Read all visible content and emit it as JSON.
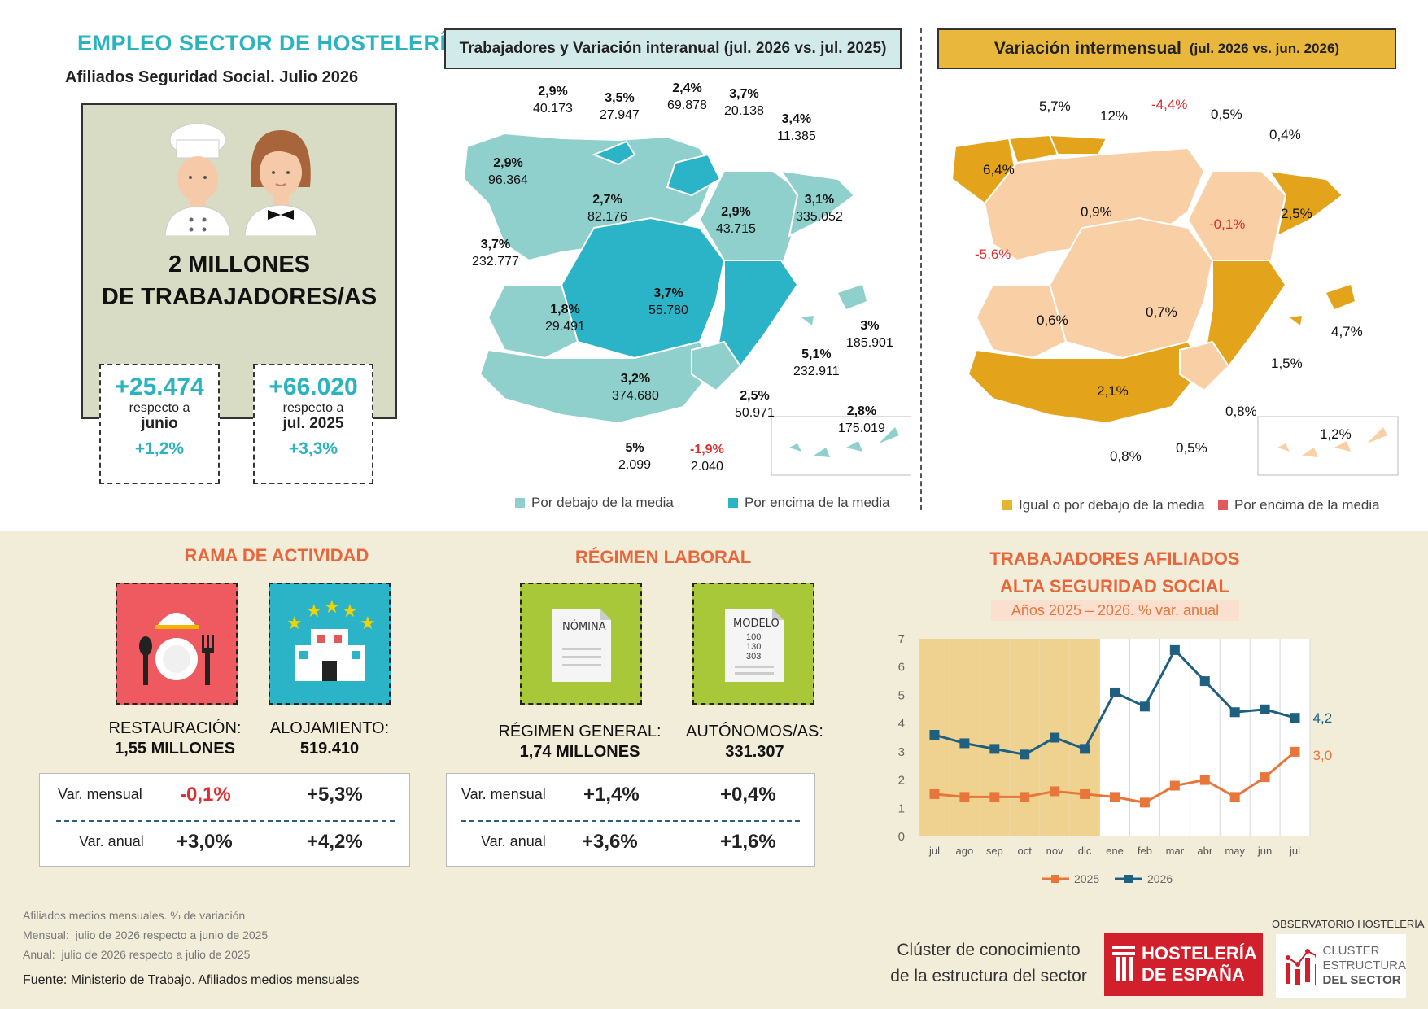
{
  "header": {
    "title": "EMPLEO SECTOR DE HOSTELERÍA",
    "subtitle": "Afiliados Seguridad Social. Julio 2026"
  },
  "hero": {
    "line1": "2 MILLONES",
    "line2": "DE TRABAJADORES/AS",
    "card_junio": {
      "value": "+25.474",
      "label": "respecto a",
      "period": "junio",
      "pct": "+1,2%"
    },
    "card_julio": {
      "value": "+66.020",
      "label": "respecto a",
      "period": "jul. 2025",
      "pct": "+3,3%"
    }
  },
  "map_left": {
    "title": "Trabajadores y Variación interanual (jul. 2026 vs. jul. 2025)",
    "legend_below": "Por debajo de la media",
    "legend_above": "Por encima de la media",
    "color_below": "#8fcfcc",
    "color_above": "#2bb3c7",
    "labels": [
      {
        "pct": "2,9%",
        "val": "40.173"
      },
      {
        "pct": "3,5%",
        "val": "27.947"
      },
      {
        "pct": "2,4%",
        "val": "69.878"
      },
      {
        "pct": "3,7%",
        "val": "20.138"
      },
      {
        "pct": "3,4%",
        "val": "11.385"
      },
      {
        "pct": "2,9%",
        "val": "96.364"
      },
      {
        "pct": "2,7%",
        "val": "82.176"
      },
      {
        "pct": "2,9%",
        "val": "43.715"
      },
      {
        "pct": "3,1%",
        "val": "335.052"
      },
      {
        "pct": "3,7%",
        "val": "232.777"
      },
      {
        "pct": "1,8%",
        "val": "29.491"
      },
      {
        "pct": "3,7%",
        "val": "55.780"
      },
      {
        "pct": "3%",
        "val": "185.901"
      },
      {
        "pct": "5,1%",
        "val": "232.911"
      },
      {
        "pct": "3,2%",
        "val": "374.680"
      },
      {
        "pct": "2,5%",
        "val": "50.971"
      },
      {
        "pct": "2,8%",
        "val": "175.019"
      },
      {
        "pct": "5%",
        "val": "2.099"
      },
      {
        "pct": "-1,9%",
        "val": "2.040"
      }
    ]
  },
  "map_right": {
    "title_main": "Variación intermensual",
    "title_period": "(jul. 2026 vs. jun. 2026)",
    "legend_below": "Igual o por debajo de la media",
    "legend_above": "Por encima de la media",
    "color_below": "#e3a31a",
    "color_above": "#f9cfa6",
    "labels": [
      "5,7%",
      "12%",
      "-4,4%",
      "0,5%",
      "0,4%",
      "6,4%",
      "0,9%",
      "-0,1%",
      "2,5%",
      "-5,6%",
      "0,6%",
      "0,7%",
      "4,7%",
      "1,5%",
      "2,1%",
      "0,8%",
      "1,2%",
      "0,8%",
      "0,5%"
    ]
  },
  "rama": {
    "title": "RAMA DE ACTIVIDAD",
    "restauracion_label": "RESTAURACIÓN:",
    "restauracion_value": "1,55 MILLONES",
    "alojamiento_label": "ALOJAMIENTO:",
    "alojamiento_value": "519.410",
    "row1_label": "Var. mensual",
    "row1_a": "-0,1%",
    "row1_b": "+5,3%",
    "row2_label": "Var. anual",
    "row2_a": "+3,0%",
    "row2_b": "+4,2%"
  },
  "regimen": {
    "title": "RÉGIMEN LABORAL",
    "doc1": "NÓMINA",
    "doc2": "MODELO",
    "doc2_nums": [
      "100",
      "130",
      "303"
    ],
    "general_label": "RÉGIMEN GENERAL:",
    "general_value": "1,74 MILLONES",
    "autonomos_label": "AUTÓNOMOS/AS:",
    "autonomos_value": "331.307",
    "row1_label": "Var. mensual",
    "row1_a": "+1,4%",
    "row1_b": "+0,4%",
    "row2_label": "Var. anual",
    "row2_a": "+3,6%",
    "row2_b": "+1,6%"
  },
  "chart_data": {
    "type": "line",
    "title": "TRABAJADORES AFILIADOS",
    "title2": "ALTA SEGURIDAD SOCIAL",
    "subtitle": "Años 2025 – 2026. % var. anual",
    "categories": [
      "jul",
      "ago",
      "sep",
      "oct",
      "nov",
      "dic",
      "ene",
      "feb",
      "mar",
      "abr",
      "may",
      "jun",
      "jul"
    ],
    "ylim": [
      0,
      7
    ],
    "yticks": [
      0,
      1,
      2,
      3,
      4,
      5,
      6,
      7
    ],
    "grid": "vertical",
    "legend": "bottom",
    "series": [
      {
        "name": "2025",
        "color": "#e8763b",
        "values": [
          1.5,
          1.4,
          1.4,
          1.4,
          1.6,
          1.5,
          1.4,
          1.2,
          1.8,
          2.0,
          1.4,
          2.1,
          3.0
        ]
      },
      {
        "name": "2026",
        "color": "#1f5f80",
        "values": [
          3.6,
          3.3,
          3.1,
          2.9,
          3.5,
          3.1,
          5.1,
          4.6,
          6.6,
          5.5,
          4.4,
          4.5,
          4.2
        ]
      }
    ],
    "end_labels": [
      "4,2",
      "3,0"
    ],
    "shaded_range": [
      0,
      5
    ]
  },
  "footer": {
    "note1": "Afiliados medios mensuales. % de variación",
    "note2_label": "Mensual:",
    "note2": "julio de 2026 respecto a junio de 2025",
    "note3_label": "Anual:",
    "note3": "julio de 2026 respecto a julio de 2025",
    "source": "Fuente: Ministerio de Trabajo. Afiliados medios mensuales",
    "cluster_line1": "Clúster de conocimiento",
    "cluster_line2": "de la estructura del sector",
    "logo1_line1": "HOSTELERÍA",
    "logo1_line2": "DE ESPAÑA",
    "observatorio": "OBSERVATORIO HOSTELERÍA",
    "logo2_line1": "CLUSTER",
    "logo2_line2": "ESTRUCTURA",
    "logo2_line3": "DEL SECTOR"
  }
}
